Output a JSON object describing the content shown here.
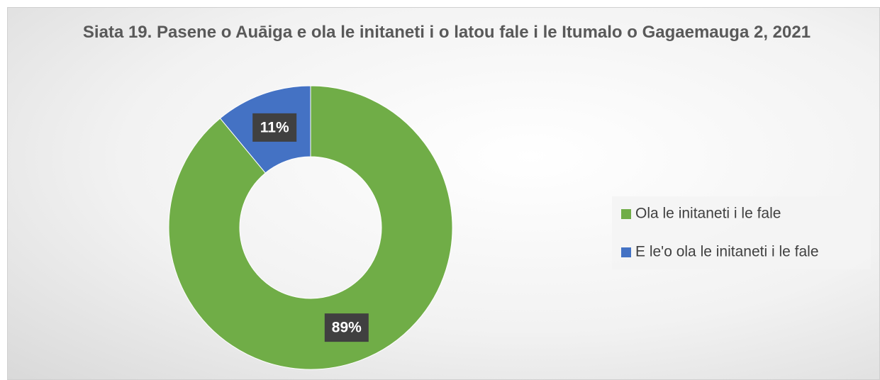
{
  "chart_data": {
    "type": "donut",
    "title": "Siata 19. Pasene o Auāiga e ola le initaneti i o latou fale i le Itumalo o Gagaemauga 2, 2021",
    "categories": [
      "Ola le initaneti i le fale",
      "E le'o ola le initaneti i le fale"
    ],
    "values": [
      89,
      11
    ],
    "value_labels": [
      "89%",
      "11%"
    ],
    "colors": [
      "#70ad47",
      "#4472c4"
    ],
    "legend": "right"
  }
}
